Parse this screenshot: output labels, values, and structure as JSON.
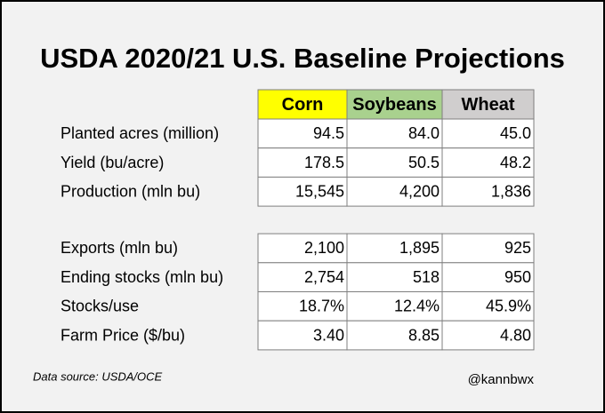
{
  "header": {
    "title": "USDA 2020/21 U.S. Baseline Projections"
  },
  "table": {
    "columns": [
      {
        "label": "Corn",
        "color": "#ffff00"
      },
      {
        "label": "Soybeans",
        "color": "#a9d18e"
      },
      {
        "label": "Wheat",
        "color": "#d0cece"
      }
    ],
    "sections": [
      {
        "rows": [
          {
            "label": "Planted acres (million)",
            "values": [
              "94.5",
              "84.0",
              "45.0"
            ]
          },
          {
            "label": "Yield (bu/acre)",
            "values": [
              "178.5",
              "50.5",
              "48.2"
            ]
          },
          {
            "label": "Production (mln bu)",
            "values": [
              "15,545",
              "4,200",
              "1,836"
            ]
          }
        ]
      },
      {
        "rows": [
          {
            "label": "Exports (mln bu)",
            "values": [
              "2,100",
              "1,895",
              "925"
            ]
          },
          {
            "label": "Ending stocks (mln bu)",
            "values": [
              "2,754",
              "518",
              "950"
            ]
          },
          {
            "label": "Stocks/use",
            "values": [
              "18.7%",
              "12.4%",
              "45.9%"
            ]
          },
          {
            "label": "Farm Price ($/bu)",
            "values": [
              "3.40",
              "8.85",
              "4.80"
            ]
          }
        ]
      }
    ]
  },
  "footer": {
    "source": "Data source: USDA/OCE",
    "handle": "@kannbwx"
  }
}
